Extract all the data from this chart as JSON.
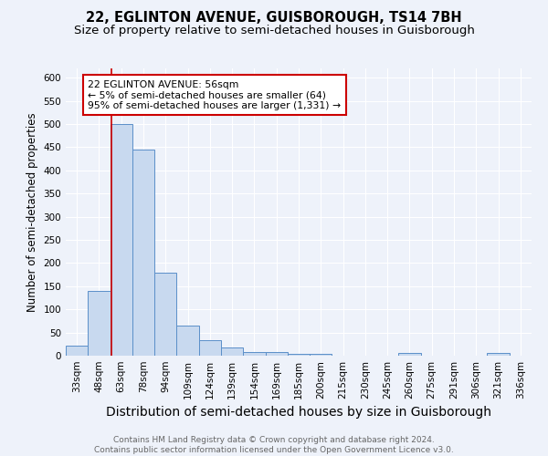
{
  "title": "22, EGLINTON AVENUE, GUISBOROUGH, TS14 7BH",
  "subtitle": "Size of property relative to semi-detached houses in Guisborough",
  "xlabel": "Distribution of semi-detached houses by size in Guisborough",
  "ylabel": "Number of semi-detached properties",
  "categories": [
    "33sqm",
    "48sqm",
    "63sqm",
    "78sqm",
    "94sqm",
    "109sqm",
    "124sqm",
    "139sqm",
    "154sqm",
    "169sqm",
    "185sqm",
    "200sqm",
    "215sqm",
    "230sqm",
    "245sqm",
    "260sqm",
    "275sqm",
    "291sqm",
    "306sqm",
    "321sqm",
    "336sqm"
  ],
  "values": [
    22,
    140,
    500,
    445,
    180,
    65,
    33,
    17,
    8,
    8,
    4,
    4,
    0,
    0,
    0,
    5,
    0,
    0,
    0,
    5,
    0
  ],
  "bar_color": "#c8d9ef",
  "bar_edge_color": "#5b8fc9",
  "red_line_x": 1.55,
  "annotation_line1": "22 EGLINTON AVENUE: 56sqm",
  "annotation_line2": "← 5% of semi-detached houses are smaller (64)",
  "annotation_line3": "95% of semi-detached houses are larger (1,331) →",
  "annotation_box_facecolor": "#ffffff",
  "annotation_box_edgecolor": "#cc0000",
  "footer_line1": "Contains HM Land Registry data © Crown copyright and database right 2024.",
  "footer_line2": "Contains public sector information licensed under the Open Government Licence v3.0.",
  "ylim_max": 620,
  "yticks": [
    0,
    50,
    100,
    150,
    200,
    250,
    300,
    350,
    400,
    450,
    500,
    550,
    600
  ],
  "background_color": "#eef2fa",
  "grid_color": "#ffffff",
  "title_fontsize": 10.5,
  "subtitle_fontsize": 9.5,
  "xlabel_fontsize": 10,
  "ylabel_fontsize": 8.5,
  "tick_fontsize": 7.5,
  "annot_fontsize": 7.8,
  "footer_fontsize": 6.5
}
